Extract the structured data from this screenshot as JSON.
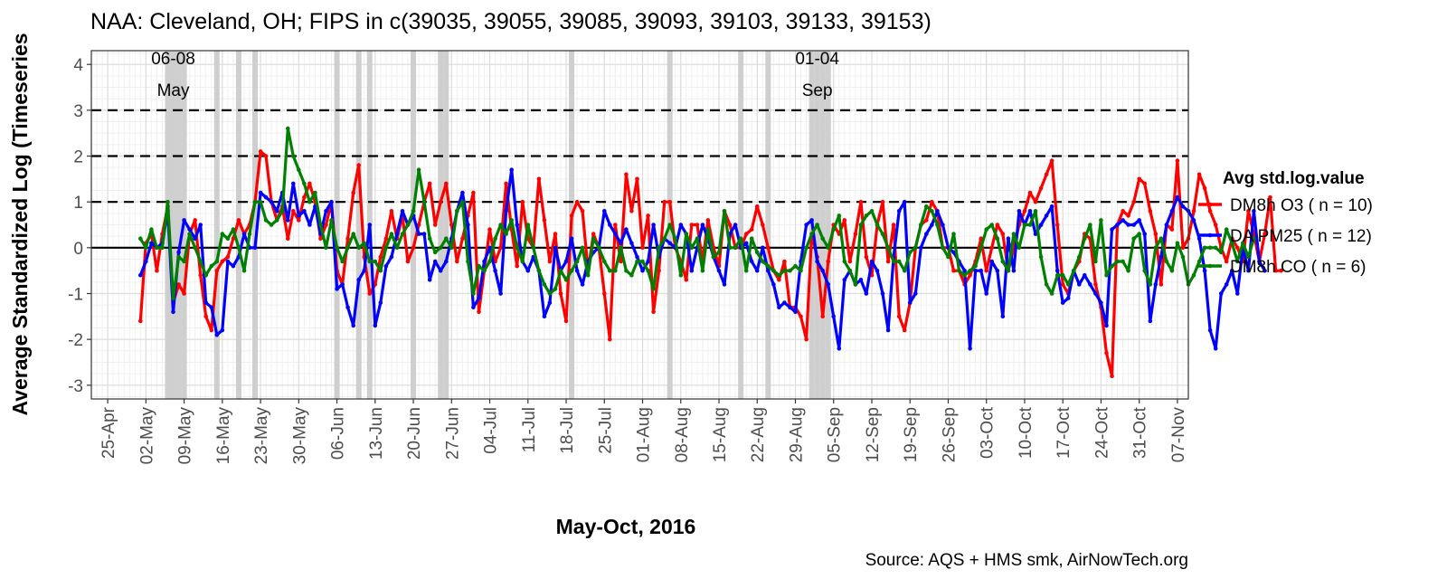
{
  "chart_data": {
    "type": "line",
    "title": "NAA: Cleveland, OH; FIPS in c(39035, 39055, 39085, 39093, 39103, 39133, 39153)",
    "xlabel": "May-Oct, 2016",
    "ylabel": "Average Standardized Log (Timeseries",
    "caption": "Source: AQS + HMS smk, AirNowTech.org",
    "ylim": [
      -3.3,
      4.3
    ],
    "xlim": [
      "2016-04-22",
      "2016-11-09"
    ],
    "y_ticks": [
      -3,
      -2,
      -1,
      0,
      1,
      2,
      3,
      4
    ],
    "x_tick_labels": [
      "25-Apr",
      "02-May",
      "09-May",
      "16-May",
      "23-May",
      "30-May",
      "06-Jun",
      "13-Jun",
      "20-Jun",
      "27-Jun",
      "04-Jul",
      "11-Jul",
      "18-Jul",
      "25-Jul",
      "01-Aug",
      "08-Aug",
      "15-Aug",
      "22-Aug",
      "29-Aug",
      "05-Sep",
      "12-Sep",
      "19-Sep",
      "26-Sep",
      "03-Oct",
      "10-Oct",
      "17-Oct",
      "24-Oct",
      "31-Oct",
      "07-Nov"
    ],
    "x_tick_dates": [
      "2016-04-25",
      "2016-05-02",
      "2016-05-09",
      "2016-05-16",
      "2016-05-23",
      "2016-05-30",
      "2016-06-06",
      "2016-06-13",
      "2016-06-20",
      "2016-06-27",
      "2016-07-04",
      "2016-07-11",
      "2016-07-18",
      "2016-07-25",
      "2016-08-01",
      "2016-08-08",
      "2016-08-15",
      "2016-08-22",
      "2016-08-29",
      "2016-09-05",
      "2016-09-12",
      "2016-09-19",
      "2016-09-26",
      "2016-10-03",
      "2016-10-10",
      "2016-10-17",
      "2016-10-24",
      "2016-10-31",
      "2016-11-07"
    ],
    "grid": true,
    "reference_lines": {
      "solid": [
        0
      ],
      "dashed": [
        1,
        2,
        3
      ]
    },
    "smoke_days": [
      "2016-05-06",
      "2016-05-07",
      "2016-05-08",
      "2016-05-09",
      "2016-05-15",
      "2016-05-19",
      "2016-05-22",
      "2016-06-06",
      "2016-06-10",
      "2016-06-12",
      "2016-06-20",
      "2016-06-25",
      "2016-06-26",
      "2016-07-19",
      "2016-08-06",
      "2016-08-19",
      "2016-08-24",
      "2016-09-01",
      "2016-09-02",
      "2016-09-03",
      "2016-09-04"
    ],
    "annotations": [
      {
        "line1": "06-08",
        "line2": "May",
        "date": "2016-05-07"
      },
      {
        "line1": "01-04",
        "line2": "Sep",
        "date": "2016-09-02"
      }
    ],
    "legend": {
      "title": "Avg std.log.value",
      "position": "right"
    },
    "start_date": "2016-05-01",
    "series": [
      {
        "name": "DM8h O3 ( n = 10)",
        "color": "#ff0000",
        "values": [
          -1.6,
          0.1,
          0.3,
          -0.5,
          0.3,
          0.9,
          -1.2,
          -0.8,
          -1.0,
          0.3,
          0.6,
          -0.6,
          -1.5,
          -1.8,
          -0.5,
          -0.3,
          -0.2,
          0.2,
          0.6,
          0.3,
          0.5,
          1.0,
          2.1,
          2.0,
          1.0,
          0.6,
          0.9,
          0.2,
          0.8,
          0.6,
          1.1,
          1.4,
          1.0,
          0.2,
          0.5,
          1.0,
          -0.5,
          -0.8,
          0.2,
          1.2,
          1.8,
          -0.2,
          -1.0,
          -0.8,
          -0.2,
          0.2,
          0.8,
          0.2,
          0.7,
          -0.3,
          0.0,
          0.5,
          1.0,
          1.4,
          0.5,
          1.0,
          1.4,
          0.5,
          -0.3,
          0.2,
          0.7,
          1.2,
          -1.4,
          -0.5,
          0.4,
          -0.3,
          0.0,
          1.4,
          0.4,
          -0.4,
          1.0,
          0.2,
          0.0,
          1.5,
          0.6,
          -0.3,
          0.3,
          -1.0,
          -1.6,
          0.7,
          1.0,
          0.8,
          -0.5,
          0.3,
          0.0,
          -1.0,
          -2.0,
          0.5,
          -0.3,
          1.6,
          0.8,
          1.5,
          0.0,
          0.7,
          -1.4,
          -0.5,
          1.0,
          1.0,
          0.0,
          -0.3,
          -0.7,
          0.5,
          0.5,
          -0.3,
          0.6,
          0.0,
          -0.4,
          0.8,
          0.5,
          0.0,
          0.0,
          0.3,
          0.4,
          0.9,
          0.5,
          0.0,
          -0.5,
          -0.7,
          -0.3,
          -1.3,
          -1.3,
          -1.5,
          -2.0,
          0.3,
          -0.2,
          -1.5,
          -0.3,
          0.5,
          0.3,
          0.6,
          -0.3,
          0.3,
          1.0,
          -0.2,
          -0.6,
          0.5,
          1.0,
          -0.3,
          0.5,
          -1.5,
          -1.8,
          -1.2,
          0.0,
          0.5,
          0.6,
          1.0,
          0.8,
          0.0,
          0.0,
          -0.5,
          -0.5,
          -0.8,
          -0.6,
          -0.3,
          0.2,
          -0.5,
          0.0,
          0.5,
          0.3,
          -0.5,
          0.0,
          0.5,
          0.8,
          1.2,
          1.0,
          1.3,
          1.6,
          1.9,
          0.5,
          -0.8,
          -1.0,
          -0.5,
          -0.3,
          0.3,
          0.2,
          -0.8,
          -1.3,
          -2.3,
          -2.8,
          0.5,
          0.8,
          0.7,
          1.0,
          1.5,
          1.4,
          0.8,
          0.3,
          -0.8,
          0.5,
          0.4,
          1.9,
          0.0,
          0.2,
          0.8,
          1.6,
          1.3,
          0.8,
          0.5,
          0.0,
          -0.3,
          0.2,
          0.0,
          -0.3,
          0.8,
          0.3,
          -0.3,
          0.3,
          1.1,
          -0.5,
          -0.5
        ]
      },
      {
        "name": "DA PM25 ( n = 12)",
        "color": "#0000ff",
        "values": [
          -0.6,
          -0.3,
          0.1,
          0.0,
          0.1,
          0.8,
          -1.4,
          -0.1,
          0.6,
          0.4,
          0.2,
          0.5,
          -1.2,
          -1.3,
          -1.9,
          -1.8,
          -0.3,
          -0.4,
          -0.2,
          0.3,
          0.0,
          0.0,
          1.2,
          1.1,
          1.0,
          0.8,
          1.2,
          0.6,
          1.4,
          0.7,
          0.8,
          0.5,
          0.9,
          0.3,
          0.8,
          1.0,
          -0.9,
          -0.8,
          -1.3,
          -1.7,
          -0.7,
          -0.5,
          0.5,
          -1.7,
          -1.2,
          -0.4,
          -0.2,
          0.3,
          0.8,
          0.5,
          0.7,
          0.3,
          0.3,
          -0.7,
          -0.3,
          -0.5,
          -0.3,
          0.2,
          0.8,
          1.2,
          0.5,
          -1.3,
          -1.1,
          -0.3,
          0.0,
          -0.5,
          -1.0,
          0.8,
          1.7,
          0.5,
          -0.3,
          -0.5,
          -0.2,
          -0.5,
          -1.5,
          -1.2,
          0.0,
          -0.5,
          -0.3,
          0.2,
          -0.5,
          -0.8,
          -0.3,
          -0.1,
          0.0,
          0.8,
          0.5,
          0.3,
          0.1,
          0.4,
          0.1,
          -0.2,
          -0.5,
          -0.3,
          0.5,
          -0.2,
          0.2,
          0.1,
          0.0,
          0.5,
          0.3,
          -0.5,
          0.0,
          0.5,
          0.2,
          -0.2,
          -0.5,
          -0.8,
          0.3,
          0.5,
          0.0,
          0.1,
          -0.3,
          -0.5,
          0.0,
          -0.5,
          -0.8,
          -1.3,
          -1.2,
          -1.3,
          -1.4,
          -0.3,
          0.5,
          0.6,
          -0.3,
          -0.5,
          -0.8,
          -1.5,
          -2.2,
          -0.7,
          -0.5,
          -0.8,
          -0.7,
          -1.0,
          -0.3,
          -0.5,
          -1.0,
          -1.8,
          -0.2,
          0.8,
          1.0,
          -1.2,
          -1.0,
          0.0,
          0.3,
          0.5,
          0.8,
          0.5,
          0.0,
          -0.1,
          -0.3,
          -0.5,
          -2.2,
          -0.5,
          -0.5,
          -1.0,
          -0.3,
          -0.5,
          -1.5,
          0.2,
          -0.5,
          0.8,
          0.5,
          0.8,
          0.3,
          0.5,
          0.7,
          0.9,
          -0.5,
          -1.2,
          -1.1,
          -0.5,
          -0.8,
          -0.6,
          -0.8,
          -1.0,
          -1.2,
          -1.7,
          0.4,
          0.5,
          0.6,
          0.5,
          0.5,
          0.6,
          0.3,
          -1.6,
          -0.8,
          -0.2,
          0.5,
          0.8,
          1.1,
          0.9,
          0.8,
          0.6,
          0.2,
          -0.5,
          -1.8,
          -2.2,
          -1.0,
          -0.8,
          -0.5,
          -1.0,
          0.0,
          -0.5,
          0.8,
          -0.3,
          -0.5
        ]
      },
      {
        "name": "DM8h CO ( n = 6)",
        "color": "#008000",
        "values": [
          0.2,
          0.0,
          0.4,
          0.0,
          0.0,
          1.0,
          -1.1,
          -0.2,
          -0.3,
          0.3,
          0.0,
          -0.3,
          -0.6,
          -0.4,
          -0.3,
          0.3,
          0.2,
          0.4,
          0.0,
          -0.5,
          0.3,
          1.0,
          1.0,
          0.6,
          0.5,
          0.6,
          0.8,
          2.6,
          2.0,
          1.7,
          1.4,
          1.0,
          1.2,
          0.5,
          0.0,
          0.6,
          0.0,
          -0.3,
          0.0,
          0.3,
          0.0,
          0.1,
          -0.3,
          -0.3,
          -0.5,
          0.0,
          0.3,
          0.0,
          0.3,
          0.5,
          0.8,
          1.7,
          1.0,
          0.2,
          -0.1,
          0.0,
          0.2,
          0.0,
          0.8,
          1.0,
          -0.3,
          -1.0,
          -0.4,
          -0.5,
          -0.3,
          0.2,
          0.5,
          0.3,
          0.6,
          0.0,
          -0.3,
          0.5,
          0.0,
          -0.5,
          -0.8,
          -1.0,
          -0.9,
          -0.5,
          -0.7,
          -0.5,
          -0.3,
          0.0,
          -0.6,
          0.2,
          0.0,
          -0.3,
          -0.5,
          -0.5,
          0.0,
          -0.5,
          -0.6,
          -0.3,
          -0.3,
          -0.5,
          -0.9,
          0.0,
          0.2,
          0.5,
          0.2,
          -0.6,
          0.3,
          0.0,
          0.2,
          -0.5,
          0.4,
          -0.2,
          -0.1,
          0.8,
          0.0,
          0.0,
          0.2,
          -0.5,
          0.2,
          -0.1,
          -0.3,
          -0.4,
          -0.5,
          -0.6,
          -0.5,
          -0.5,
          -0.4,
          -0.5,
          0.0,
          0.3,
          0.5,
          0.2,
          0.0,
          0.4,
          0.7,
          -0.3,
          -0.5,
          -0.8,
          0.5,
          0.7,
          0.8,
          0.5,
          0.3,
          0.0,
          -0.3,
          -0.3,
          -0.5,
          -0.1,
          0.0,
          0.5,
          0.9,
          0.8,
          0.5,
          0.0,
          -0.2,
          0.3,
          -0.5,
          -0.6,
          -0.5,
          -0.4,
          0.0,
          0.4,
          0.5,
          0.2,
          -0.3,
          -0.5,
          0.3,
          0.0,
          0.5,
          0.5,
          0.8,
          -0.2,
          -0.8,
          -1.0,
          -0.6,
          -0.6,
          -0.8,
          -0.5,
          -0.2,
          0.2,
          0.5,
          -0.3,
          0.6,
          -0.6,
          -0.4,
          -0.3,
          -0.3,
          -0.5,
          0.2,
          0.3,
          -0.5,
          -0.8,
          0.0,
          0.2,
          -0.3,
          -0.5,
          0.1,
          -0.2,
          -0.8,
          -0.6,
          -0.3,
          0.0,
          0.0,
          0.0,
          -0.1,
          0.4,
          0.1,
          -0.3,
          0.1,
          -0.2,
          0.2
        ]
      }
    ]
  }
}
